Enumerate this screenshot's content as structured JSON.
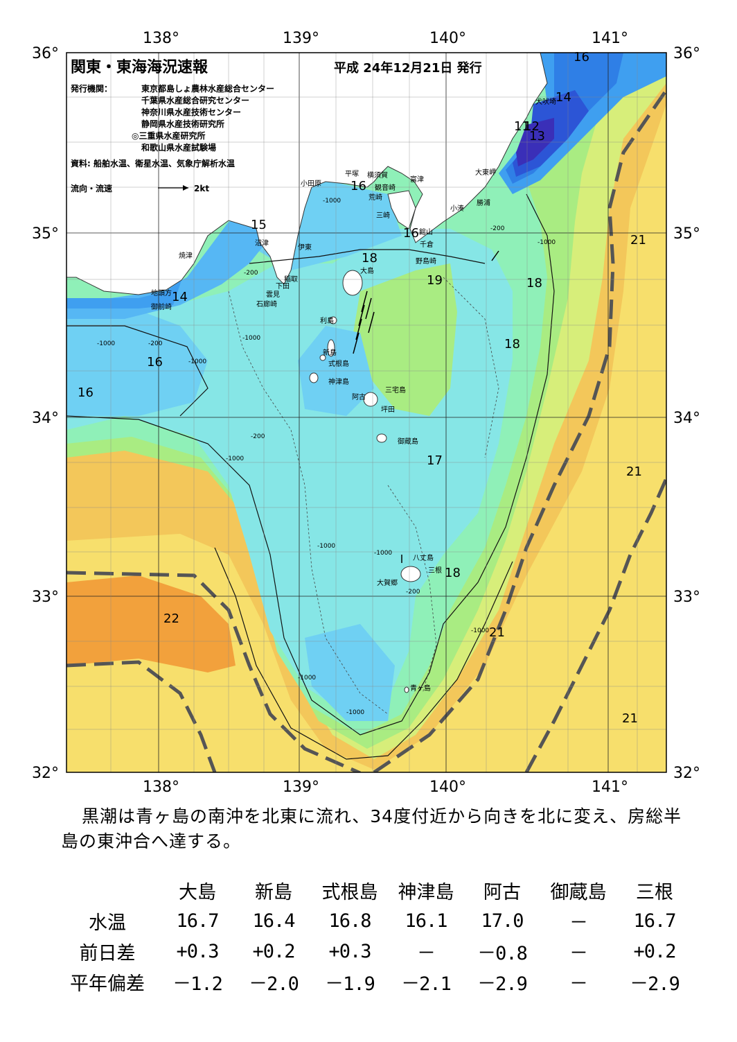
{
  "header": {
    "title": "関東・東海海況速報",
    "date": "平成 24年12月21日 発行",
    "publisher_label": "発行機関：",
    "publishers": [
      "東京都島しょ農林水産総合センター",
      "千葉県水産総合研究センター",
      "神奈川県水産技術センター",
      "静岡県水産技術研究所",
      "◎三重県水産研究所",
      "和歌山県水産試験場"
    ],
    "source": "資料: 船舶水温、衛星水温、気象庁解析水温",
    "flow_legend": "流向・流速",
    "flow_scale": "2kt"
  },
  "axes": {
    "lon_labels": [
      "138°",
      "139°",
      "140°",
      "141°"
    ],
    "lat_labels": [
      "36°",
      "35°",
      "34°",
      "33°",
      "32°"
    ]
  },
  "places": [
    "小田原",
    "平塚",
    "横須賀",
    "観音崎",
    "富津",
    "荒崎",
    "三崎",
    "館山",
    "千倉",
    "野島崎",
    "大東岬",
    "勝浦",
    "小湊",
    "犬吠埼",
    "沼津",
    "伊東",
    "焼津",
    "稲取",
    "下田",
    "雲見",
    "石廊崎",
    "地頭方",
    "御前崎",
    "大島",
    "利島",
    "新島",
    "式根島",
    "神津島",
    "三宅島",
    "阿古",
    "坪田",
    "御蔵島",
    "八丈島",
    "三根",
    "大賀郷",
    "青ヶ島"
  ],
  "isotherm_labels": [
    "16",
    "16",
    "16",
    "16",
    "15",
    "14",
    "14",
    "11",
    "12",
    "13",
    "16",
    "18",
    "19",
    "18",
    "18",
    "17",
    "18",
    "21",
    "21",
    "21",
    "21",
    "22"
  ],
  "depth_labels": [
    "-200",
    "-1000"
  ],
  "colors": {
    "t11": "#3a2fb8",
    "t12": "#2c55d6",
    "t13": "#2f7fe6",
    "t14": "#3f9ff0",
    "t15": "#56b7f4",
    "t16": "#6fd0f3",
    "t17": "#86e6e6",
    "t18": "#8ff0b8",
    "t19": "#a9ec82",
    "t20": "#d7ee7a",
    "t21": "#f7df6c",
    "t21b": "#f3c75a",
    "t22": "#f2a13c",
    "land": "#ffffff",
    "kuroshio": "#555555"
  },
  "description": "黒潮は青ヶ島の南沖を北東に流れ、34度付近から向きを北に変え、房総半島の東沖合へ達する。",
  "table": {
    "columns": [
      "大島",
      "新島",
      "式根島",
      "神津島",
      "阿古",
      "御蔵島",
      "三根"
    ],
    "rows": [
      {
        "label": "水温",
        "values": [
          "16.7",
          "16.4",
          "16.8",
          "16.1",
          "17.0",
          "－",
          "16.7"
        ]
      },
      {
        "label": "前日差",
        "values": [
          "+0.3",
          "+0.2",
          "+0.3",
          "－",
          "－0.8",
          "－",
          "+0.2"
        ]
      },
      {
        "label": "平年偏差",
        "values": [
          "－1.2",
          "－2.0",
          "－1.9",
          "－2.1",
          "－2.9",
          "－",
          "－2.9"
        ]
      }
    ]
  }
}
